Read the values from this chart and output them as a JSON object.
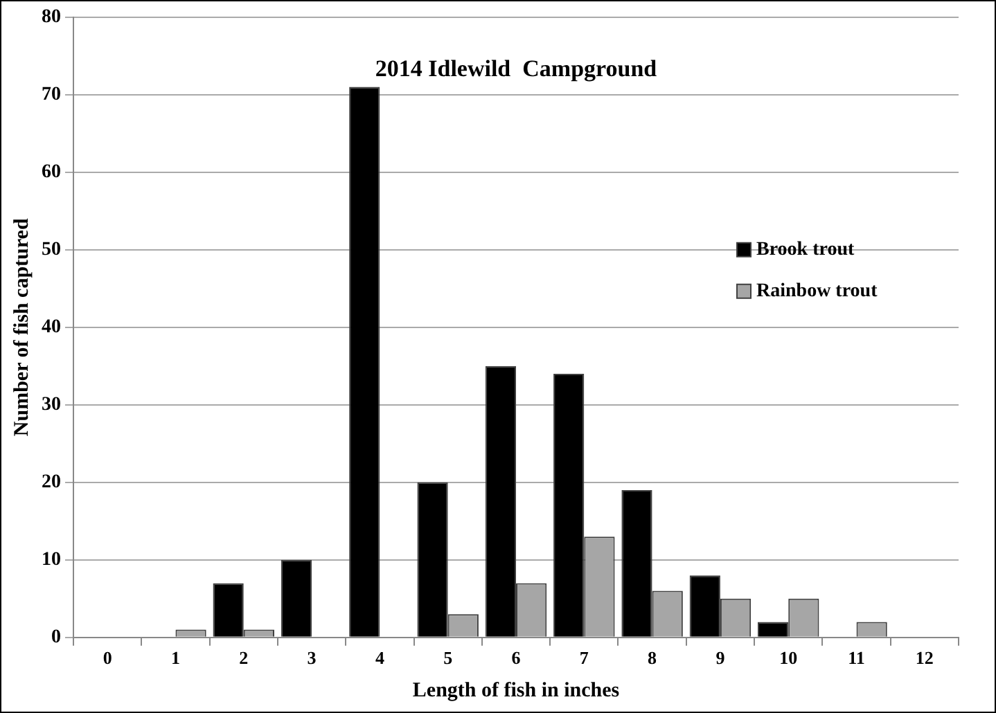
{
  "chart_data": {
    "type": "bar",
    "title": "2014 Idlewild  Campground",
    "xlabel": "Length of fish in inches",
    "ylabel": "Number of fish captured",
    "categories": [
      "0",
      "1",
      "2",
      "3",
      "4",
      "5",
      "6",
      "7",
      "8",
      "9",
      "10",
      "11",
      "12"
    ],
    "series": [
      {
        "name": "Brook trout",
        "color": "#000000",
        "values": [
          0,
          0,
          7,
          10,
          71,
          20,
          35,
          34,
          19,
          8,
          2,
          0,
          0
        ]
      },
      {
        "name": "Rainbow trout",
        "color": "#a6a6a6",
        "values": [
          0,
          1,
          1,
          0,
          0,
          3,
          7,
          13,
          6,
          5,
          5,
          2,
          0
        ]
      }
    ],
    "ylim": [
      0,
      80
    ],
    "yticks": [
      0,
      10,
      20,
      30,
      40,
      50,
      60,
      70,
      80
    ],
    "grid": "y",
    "legend": "right"
  }
}
